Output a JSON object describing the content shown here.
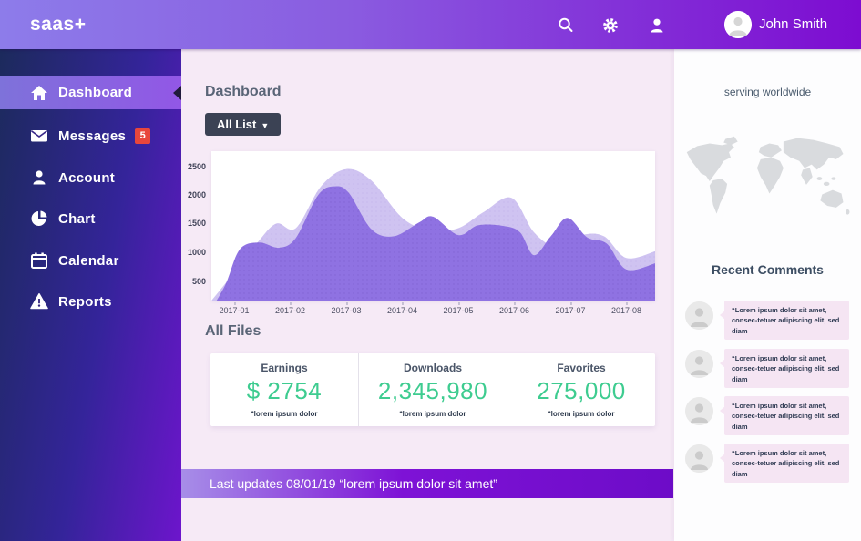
{
  "topbar": {
    "logo": "saas+",
    "user_name": "John Smith"
  },
  "sidebar": {
    "items": [
      {
        "label": "Dashboard",
        "icon": "home-icon",
        "active": true
      },
      {
        "label": "Messages",
        "icon": "mail-icon",
        "badge": "5"
      },
      {
        "label": "Account",
        "icon": "person-icon"
      },
      {
        "label": "Chart",
        "icon": "pie-chart-icon"
      },
      {
        "label": "Calendar",
        "icon": "calendar-icon"
      },
      {
        "label": "Reports",
        "icon": "alert-icon"
      }
    ]
  },
  "main": {
    "title": "Dashboard",
    "filter_label": "All List",
    "all_files_heading": "All Files",
    "stats": [
      {
        "label": "Earnings",
        "value": "$ 2754",
        "note": "*lorem ipsum dolor"
      },
      {
        "label": "Downloads",
        "value": "2,345,980",
        "note": "*lorem ipsum dolor"
      },
      {
        "label": "Favorites",
        "value": "275,000",
        "note": "*lorem ipsum dolor"
      }
    ],
    "update_bar": "Last updates 08/01/19 “lorem ipsum dolor sit amet”"
  },
  "right_panel": {
    "tagline": "serving worldwide",
    "comments_heading": "Recent Comments",
    "comments": [
      "“Lorem ipsum dolor sit amet, consec-tetuer adipiscing elit, sed diam",
      "“Lorem ipsum dolor sit amet, consec-tetuer adipiscing elit, sed diam",
      "“Lorem ipsum dolor sit amet, consec-tetuer adipiscing elit, sed diam",
      "“Lorem ipsum dolor sit amet, consec-tetuer adipiscing elit, sed diam"
    ]
  },
  "chart_data": {
    "type": "area",
    "title": "",
    "xlabel": "",
    "ylabel": "",
    "x_ticks": [
      "2017-01",
      "2017-02",
      "2017-03",
      "2017-04",
      "2017-05",
      "2017-06",
      "2017-07",
      "2017-08"
    ],
    "y_ticks": [
      "2500",
      "2000",
      "1500",
      "1000",
      "500"
    ],
    "ylim": [
      0,
      2600
    ],
    "grid": false,
    "legend": "none",
    "series": [
      {
        "name": "background-series",
        "color": "#cfc3f1",
        "x": [
          0.59,
          1.0,
          1.4,
          1.75,
          2.1,
          2.55,
          3.0,
          3.45,
          4.0,
          4.5,
          5.0,
          5.45,
          5.95,
          6.35,
          6.75,
          7.2,
          7.6,
          8.0,
          8.52
        ],
        "values": [
          150,
          650,
          1150,
          1500,
          1420,
          2150,
          2450,
          2250,
          1600,
          1380,
          1420,
          1700,
          1950,
          1350,
          1100,
          1300,
          1280,
          900,
          1020
        ]
      },
      {
        "name": "foreground-series",
        "color": "#8f72e2",
        "x": [
          0.59,
          0.85,
          1.1,
          1.45,
          1.8,
          2.1,
          2.5,
          2.8,
          3.05,
          3.45,
          3.85,
          4.3,
          4.55,
          5.0,
          5.35,
          5.8,
          6.1,
          6.35,
          6.65,
          6.95,
          7.3,
          7.65,
          8.0,
          8.52
        ],
        "values": [
          0,
          450,
          1050,
          1170,
          1080,
          1250,
          2000,
          2150,
          2030,
          1400,
          1280,
          1520,
          1620,
          1300,
          1470,
          1460,
          1350,
          950,
          1280,
          1600,
          1260,
          1150,
          700,
          810
        ]
      }
    ]
  },
  "colors": {
    "accent_purple": "#7d0cd1",
    "sidebar_navy": "#1c2a5c",
    "active_item": "#8a64e0",
    "stat_green": "#3ecc90",
    "badge_red": "#e8463c",
    "bubble_pink": "#f5e5f3",
    "main_bg": "#f6eaf6"
  }
}
